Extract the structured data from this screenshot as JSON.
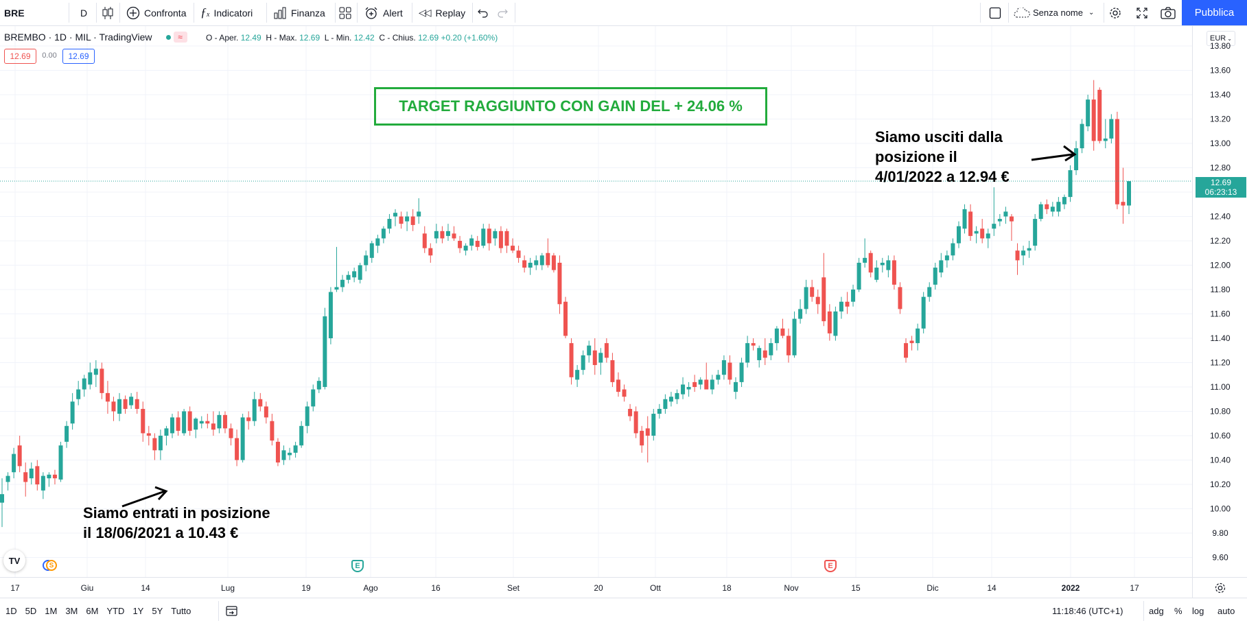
{
  "toolbar": {
    "symbol": "BRE",
    "interval": "D",
    "compare_label": "Confronta",
    "indicators_label": "Indicatori",
    "financials_label": "Finanza",
    "alert_label": "Alert",
    "replay_label": "Replay",
    "layout_name": "Senza nome",
    "publish_label": "Pubblica"
  },
  "legend": {
    "title": "BREMBO · 1D · MIL · TradingView",
    "open_label": "O - Aper.",
    "open": "12.49",
    "high_label": "H - Max.",
    "high": "12.69",
    "low_label": "L - Min.",
    "low": "12.42",
    "close_label": "C - Chius.",
    "close": "12.69",
    "change": "+0.20 (+1.60%)",
    "bid": "12.69",
    "spread": "0.00",
    "ask": "12.69"
  },
  "currency": "EUR",
  "last_price": {
    "value": "12.69",
    "countdown": "06:23:13"
  },
  "annotations": {
    "target": "TARGET RAGGIUNTO CON GAIN DEL + 24.06 %",
    "entry_line1": "Siamo entrati in posizione",
    "entry_line2": "il 18/06/2021 a 10.43 €",
    "exit_line1": "Siamo usciti dalla",
    "exit_line2": "posizione il",
    "exit_line3": "4/01/2022 a 12.94 €"
  },
  "events": {
    "dividend": "S",
    "earnings": "E"
  },
  "bottom": {
    "ranges": [
      "1D",
      "5D",
      "1M",
      "3M",
      "6M",
      "YTD",
      "1Y",
      "5Y",
      "Tutto"
    ],
    "time": "11:18:46 (UTC+1)",
    "adj": "adg",
    "percent": "%",
    "log": "log",
    "auto": "auto"
  },
  "colors": {
    "up": "#26a69a",
    "down": "#ef5350",
    "accent": "#2962ff",
    "annotation_box": "#22ab3c"
  },
  "chart_data": {
    "type": "candlestick",
    "y_ticks": [
      "13.80",
      "13.60",
      "13.40",
      "13.20",
      "13.00",
      "12.80",
      "12.60",
      "12.40",
      "12.20",
      "12.00",
      "11.80",
      "11.60",
      "11.40",
      "11.20",
      "11.00",
      "10.80",
      "10.60",
      "10.40",
      "10.20",
      "10.00",
      "9.80",
      "9.60"
    ],
    "ylim": [
      9.6,
      13.8
    ],
    "x_ticks": [
      "17",
      "Giu",
      "14",
      "Lug",
      "19",
      "Ago",
      "16",
      "Set",
      "20",
      "Ott",
      "18",
      "Nov",
      "15",
      "Dic",
      "14",
      "2022",
      "17"
    ],
    "ohlc": [
      [
        10.05,
        10.25,
        9.85,
        10.12
      ],
      [
        10.22,
        10.3,
        10.15,
        10.27
      ],
      [
        10.3,
        10.5,
        10.25,
        10.45
      ],
      [
        10.52,
        10.6,
        10.3,
        10.35
      ],
      [
        10.3,
        10.38,
        10.1,
        10.22
      ],
      [
        10.25,
        10.38,
        10.2,
        10.33
      ],
      [
        10.35,
        10.4,
        10.15,
        10.2
      ],
      [
        10.15,
        10.3,
        10.08,
        10.27
      ],
      [
        10.25,
        10.3,
        10.18,
        10.28
      ],
      [
        10.28,
        10.32,
        10.2,
        10.25
      ],
      [
        10.24,
        10.55,
        10.22,
        10.52
      ],
      [
        10.55,
        10.72,
        10.5,
        10.68
      ],
      [
        10.7,
        10.95,
        10.65,
        10.88
      ],
      [
        10.9,
        11.05,
        10.85,
        10.98
      ],
      [
        10.98,
        11.1,
        10.92,
        11.07
      ],
      [
        11.02,
        11.2,
        10.98,
        11.12
      ],
      [
        11.1,
        11.22,
        11.0,
        11.15
      ],
      [
        11.15,
        11.2,
        10.9,
        10.95
      ],
      [
        10.95,
        11.05,
        10.78,
        10.88
      ],
      [
        10.88,
        10.92,
        10.72,
        10.8
      ],
      [
        10.78,
        10.95,
        10.72,
        10.9
      ],
      [
        10.9,
        10.93,
        10.78,
        10.82
      ],
      [
        10.85,
        10.95,
        10.82,
        10.92
      ],
      [
        10.9,
        10.96,
        10.78,
        10.82
      ],
      [
        10.82,
        10.88,
        10.55,
        10.62
      ],
      [
        10.62,
        10.68,
        10.52,
        10.6
      ],
      [
        10.58,
        10.62,
        10.4,
        10.48
      ],
      [
        10.48,
        10.65,
        10.4,
        10.6
      ],
      [
        10.6,
        10.68,
        10.52,
        10.66
      ],
      [
        10.62,
        10.78,
        10.58,
        10.75
      ],
      [
        10.75,
        10.8,
        10.6,
        10.64
      ],
      [
        10.62,
        10.82,
        10.6,
        10.8
      ],
      [
        10.8,
        10.84,
        10.6,
        10.64
      ],
      [
        10.65,
        10.75,
        10.58,
        10.74
      ],
      [
        10.7,
        10.76,
        10.66,
        10.72
      ],
      [
        10.72,
        10.78,
        10.66,
        10.7
      ],
      [
        10.7,
        10.8,
        10.6,
        10.65
      ],
      [
        10.66,
        10.8,
        10.62,
        10.77
      ],
      [
        10.77,
        10.8,
        10.62,
        10.66
      ],
      [
        10.66,
        10.7,
        10.52,
        10.58
      ],
      [
        10.58,
        10.65,
        10.35,
        10.4
      ],
      [
        10.4,
        10.78,
        10.38,
        10.75
      ],
      [
        10.75,
        10.8,
        10.65,
        10.72
      ],
      [
        10.72,
        10.96,
        10.68,
        10.9
      ],
      [
        10.9,
        10.95,
        10.8,
        10.84
      ],
      [
        10.84,
        10.88,
        10.7,
        10.75
      ],
      [
        10.72,
        10.78,
        10.52,
        10.56
      ],
      [
        10.55,
        10.58,
        10.35,
        10.38
      ],
      [
        10.4,
        10.52,
        10.36,
        10.48
      ],
      [
        10.44,
        10.5,
        10.4,
        10.46
      ],
      [
        10.46,
        10.55,
        10.42,
        10.52
      ],
      [
        10.52,
        10.72,
        10.5,
        10.68
      ],
      [
        10.68,
        10.88,
        10.62,
        10.84
      ],
      [
        10.84,
        11.02,
        10.8,
        10.98
      ],
      [
        10.98,
        11.08,
        10.95,
        11.05
      ],
      [
        11.0,
        11.65,
        10.98,
        11.58
      ],
      [
        11.4,
        11.82,
        11.35,
        11.78
      ],
      [
        11.8,
        12.15,
        11.78,
        11.82
      ],
      [
        11.82,
        11.92,
        11.78,
        11.88
      ],
      [
        11.88,
        11.95,
        11.85,
        11.92
      ],
      [
        11.9,
        11.98,
        11.86,
        11.95
      ],
      [
        11.88,
        12.02,
        11.85,
        12.0
      ],
      [
        12.0,
        12.12,
        11.95,
        12.08
      ],
      [
        12.06,
        12.2,
        12.02,
        12.18
      ],
      [
        12.16,
        12.25,
        12.1,
        12.22
      ],
      [
        12.22,
        12.32,
        12.18,
        12.3
      ],
      [
        12.3,
        12.42,
        12.26,
        12.38
      ],
      [
        12.4,
        12.46,
        12.32,
        12.43
      ],
      [
        12.4,
        12.44,
        12.3,
        12.34
      ],
      [
        12.36,
        12.44,
        12.28,
        12.4
      ],
      [
        12.4,
        12.46,
        12.28,
        12.33
      ],
      [
        12.4,
        12.55,
        12.34,
        12.44
      ],
      [
        12.26,
        12.32,
        12.1,
        12.14
      ],
      [
        12.14,
        12.18,
        12.02,
        12.08
      ],
      [
        12.22,
        12.34,
        12.18,
        12.28
      ],
      [
        12.28,
        12.32,
        12.18,
        12.22
      ],
      [
        12.24,
        12.34,
        12.2,
        12.28
      ],
      [
        12.26,
        12.32,
        12.2,
        12.22
      ],
      [
        12.2,
        12.24,
        12.1,
        12.14
      ],
      [
        12.12,
        12.18,
        12.08,
        12.16
      ],
      [
        12.16,
        12.25,
        12.12,
        12.22
      ],
      [
        12.2,
        12.24,
        12.12,
        12.15
      ],
      [
        12.16,
        12.34,
        12.14,
        12.3
      ],
      [
        12.3,
        12.34,
        12.12,
        12.18
      ],
      [
        12.22,
        12.3,
        12.16,
        12.28
      ],
      [
        12.28,
        12.32,
        12.1,
        12.14
      ],
      [
        12.28,
        12.3,
        12.1,
        12.16
      ],
      [
        12.16,
        12.22,
        12.1,
        12.12
      ],
      [
        12.12,
        12.16,
        12.02,
        12.06
      ],
      [
        12.04,
        12.08,
        11.94,
        11.98
      ],
      [
        11.98,
        12.06,
        11.92,
        12.02
      ],
      [
        12.0,
        12.08,
        11.96,
        12.04
      ],
      [
        12.0,
        12.1,
        11.96,
        12.08
      ],
      [
        12.1,
        12.22,
        11.98,
        12.0
      ],
      [
        12.08,
        12.1,
        11.94,
        11.96
      ],
      [
        12.02,
        12.08,
        11.6,
        11.68
      ],
      [
        11.7,
        11.74,
        11.4,
        11.42
      ],
      [
        11.36,
        11.4,
        11.02,
        11.08
      ],
      [
        11.06,
        11.18,
        11.0,
        11.14
      ],
      [
        11.14,
        11.3,
        11.1,
        11.26
      ],
      [
        11.26,
        11.38,
        11.2,
        11.34
      ],
      [
        11.3,
        11.4,
        11.1,
        11.18
      ],
      [
        11.2,
        11.32,
        11.1,
        11.28
      ],
      [
        11.36,
        11.4,
        11.2,
        11.24
      ],
      [
        11.22,
        11.28,
        11.0,
        11.04
      ],
      [
        11.06,
        11.12,
        10.92,
        10.96
      ],
      [
        10.98,
        11.02,
        10.88,
        10.92
      ],
      [
        10.82,
        10.86,
        10.72,
        10.76
      ],
      [
        10.8,
        10.84,
        10.58,
        10.62
      ],
      [
        10.64,
        10.68,
        10.46,
        10.52
      ],
      [
        10.66,
        10.76,
        10.38,
        10.6
      ],
      [
        10.6,
        10.82,
        10.56,
        10.78
      ],
      [
        10.78,
        10.86,
        10.74,
        10.82
      ],
      [
        10.82,
        10.94,
        10.78,
        10.9
      ],
      [
        10.88,
        10.96,
        10.84,
        10.92
      ],
      [
        10.9,
        10.98,
        10.86,
        10.95
      ],
      [
        10.94,
        11.08,
        10.9,
        11.02
      ],
      [
        10.98,
        11.04,
        10.92,
        11.0
      ],
      [
        11.04,
        11.1,
        10.96,
        11.0
      ],
      [
        11.02,
        11.08,
        10.98,
        11.06
      ],
      [
        11.06,
        11.2,
        11.02,
        10.98
      ],
      [
        10.98,
        11.1,
        10.94,
        11.06
      ],
      [
        11.06,
        11.14,
        11.02,
        11.1
      ],
      [
        11.1,
        11.26,
        11.06,
        11.22
      ],
      [
        11.2,
        11.26,
        11.02,
        11.06
      ],
      [
        10.96,
        11.08,
        10.9,
        11.04
      ],
      [
        11.04,
        11.24,
        11.0,
        11.2
      ],
      [
        11.2,
        11.42,
        11.16,
        11.36
      ],
      [
        11.36,
        11.4,
        11.3,
        11.34
      ],
      [
        11.22,
        11.34,
        11.16,
        11.32
      ],
      [
        11.3,
        11.4,
        11.18,
        11.24
      ],
      [
        11.26,
        11.4,
        11.22,
        11.36
      ],
      [
        11.36,
        11.5,
        11.3,
        11.48
      ],
      [
        11.48,
        11.56,
        11.4,
        11.42
      ],
      [
        11.42,
        11.48,
        11.2,
        11.26
      ],
      [
        11.26,
        11.62,
        11.24,
        11.56
      ],
      [
        11.56,
        11.72,
        11.52,
        11.64
      ],
      [
        11.64,
        11.88,
        11.6,
        11.82
      ],
      [
        11.82,
        11.88,
        11.7,
        11.74
      ],
      [
        11.74,
        11.8,
        11.6,
        11.68
      ],
      [
        11.9,
        12.1,
        11.5,
        11.54
      ],
      [
        11.62,
        11.68,
        11.38,
        11.44
      ],
      [
        11.42,
        11.66,
        11.38,
        11.62
      ],
      [
        11.62,
        11.74,
        11.56,
        11.7
      ],
      [
        11.7,
        11.78,
        11.6,
        11.66
      ],
      [
        11.7,
        11.84,
        11.66,
        11.8
      ],
      [
        11.8,
        12.06,
        11.78,
        12.02
      ],
      [
        12.02,
        12.22,
        11.98,
        12.06
      ],
      [
        12.1,
        12.12,
        11.9,
        11.94
      ],
      [
        11.88,
        12.04,
        11.86,
        11.98
      ],
      [
        12.0,
        12.06,
        11.94,
        12.02
      ],
      [
        11.96,
        12.08,
        11.9,
        12.04
      ],
      [
        12.04,
        12.08,
        11.8,
        11.84
      ],
      [
        11.82,
        11.86,
        11.6,
        11.64
      ],
      [
        11.36,
        11.4,
        11.2,
        11.24
      ],
      [
        11.38,
        11.42,
        11.3,
        11.36
      ],
      [
        11.36,
        11.52,
        11.3,
        11.48
      ],
      [
        11.48,
        11.78,
        11.44,
        11.74
      ],
      [
        11.74,
        11.86,
        11.7,
        11.82
      ],
      [
        11.84,
        12.02,
        11.8,
        11.98
      ],
      [
        11.94,
        12.1,
        11.9,
        12.04
      ],
      [
        12.04,
        12.12,
        11.98,
        12.08
      ],
      [
        12.08,
        12.22,
        12.04,
        12.18
      ],
      [
        12.18,
        12.36,
        12.14,
        12.32
      ],
      [
        12.3,
        12.5,
        12.26,
        12.46
      ],
      [
        12.44,
        12.5,
        12.2,
        12.24
      ],
      [
        12.26,
        12.32,
        12.18,
        12.28
      ],
      [
        12.3,
        12.38,
        12.18,
        12.22
      ],
      [
        12.22,
        12.3,
        12.14,
        12.26
      ],
      [
        12.3,
        12.64,
        12.24,
        12.34
      ],
      [
        12.36,
        12.42,
        12.32,
        12.38
      ],
      [
        12.4,
        12.48,
        12.34,
        12.44
      ],
      [
        12.4,
        12.42,
        12.2,
        12.36
      ],
      [
        12.12,
        12.18,
        11.92,
        12.04
      ],
      [
        12.08,
        12.16,
        12.0,
        12.12
      ],
      [
        12.12,
        12.2,
        12.06,
        12.14
      ],
      [
        12.16,
        12.42,
        12.12,
        12.38
      ],
      [
        12.38,
        12.52,
        12.36,
        12.5
      ],
      [
        12.5,
        12.54,
        12.42,
        12.46
      ],
      [
        12.44,
        12.52,
        12.4,
        12.48
      ],
      [
        12.44,
        12.56,
        12.4,
        12.52
      ],
      [
        12.5,
        12.58,
        12.46,
        12.56
      ],
      [
        12.56,
        12.82,
        12.52,
        12.78
      ],
      [
        12.78,
        13.02,
        12.74,
        12.96
      ],
      [
        12.96,
        13.2,
        12.92,
        13.16
      ],
      [
        13.14,
        13.4,
        13.1,
        13.36
      ],
      [
        13.36,
        13.52,
        12.94,
        13.02
      ],
      [
        13.44,
        13.46,
        13.0,
        13.02
      ],
      [
        13.02,
        13.2,
        12.96,
        13.04
      ],
      [
        13.04,
        13.24,
        13.0,
        13.2
      ],
      [
        13.2,
        13.26,
        12.46,
        12.5
      ],
      [
        12.52,
        12.8,
        12.34,
        12.49
      ],
      [
        12.49,
        12.69,
        12.42,
        12.69
      ]
    ]
  }
}
